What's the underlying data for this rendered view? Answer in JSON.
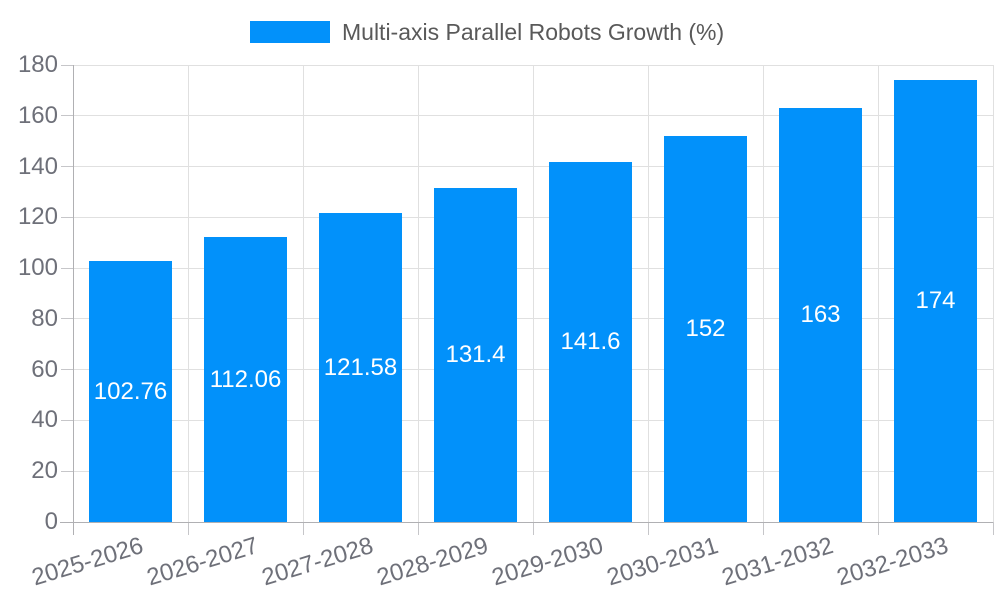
{
  "chart_data": {
    "type": "bar",
    "title": "Multi-axis Parallel Robots Growth (%)",
    "legend": [
      "Multi-axis Parallel Robots Growth (%)"
    ],
    "legend_position": "top-center",
    "categories": [
      "2025-2026",
      "2026-2027",
      "2027-2028",
      "2028-2029",
      "2029-2030",
      "2030-2031",
      "2031-2032",
      "2032-2033"
    ],
    "values": [
      102.76,
      112.06,
      121.58,
      131.4,
      141.6,
      152,
      163,
      174
    ],
    "value_labels": [
      "102.76",
      "112.06",
      "121.58",
      "131.4",
      "141.6",
      "152",
      "163",
      "174"
    ],
    "value_labels_position": "inside-center",
    "xlabel": "",
    "ylabel": "",
    "ylim": [
      0,
      180
    ],
    "yticks": [
      0,
      20,
      40,
      60,
      80,
      100,
      120,
      140,
      160,
      180
    ],
    "grid": true,
    "x_label_rotation_deg": -17
  },
  "colors": {
    "bar": "#0291fa",
    "grid": "#e0e0e0",
    "axis": "#b0b0b3",
    "tick": "#c6c6c9",
    "tick_label": "#6e7079",
    "legend_text": "#595959",
    "value_label": "#ffffff",
    "background": "#ffffff"
  }
}
